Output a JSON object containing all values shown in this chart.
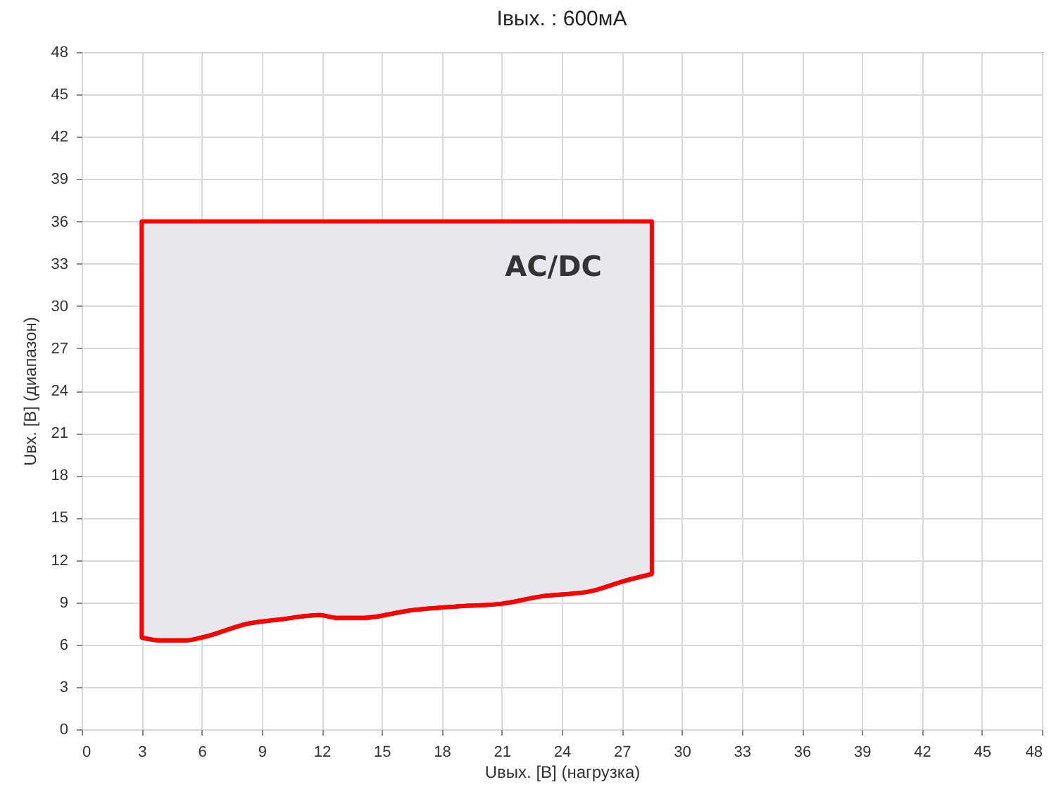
{
  "chart_data": {
    "type": "line",
    "title": "Iвых. : 600мА",
    "xlabel": "Uвых. [В] (нагрузка)",
    "ylabel": "Uвх. [В] (диапазон)",
    "x": [
      3.0,
      3.9,
      5.2,
      6.0,
      8.35,
      10.0,
      11.9,
      12.7,
      14.1,
      16.3,
      18.7,
      21.0,
      22.9,
      25.5,
      27.1,
      28.5
    ],
    "series": [
      {
        "color": "#ff0000",
        "values": [
          6.5,
          6.3,
          6.3,
          6.5,
          7.5,
          7.8,
          8.1,
          7.9,
          7.9,
          8.4,
          8.7,
          8.9,
          9.4,
          9.8,
          10.5,
          11.0
        ],
        "lower": [
          6.5,
          6.3,
          6.3,
          6.5,
          7.5,
          7.8,
          8.1,
          7.9,
          7.9,
          8.4,
          8.7,
          8.9,
          9.4,
          9.8,
          10.5,
          11.0
        ],
        "upper": [
          36,
          36,
          36,
          36,
          36,
          36,
          36,
          36,
          36,
          36,
          36,
          36,
          36,
          36,
          36,
          36
        ]
      }
    ],
    "annotations": [
      "AC/DC"
    ],
    "xlim": [
      0,
      48
    ],
    "xticks": [
      0,
      3,
      6,
      9,
      12,
      15,
      18,
      21,
      24,
      27,
      30,
      33,
      36,
      39,
      42,
      45,
      48
    ],
    "ylim": [
      0,
      48
    ],
    "yticks": [
      0,
      3,
      6,
      9,
      12,
      15,
      18,
      21,
      24,
      27,
      30,
      33,
      36,
      39,
      42,
      45,
      48
    ],
    "grid": true
  }
}
